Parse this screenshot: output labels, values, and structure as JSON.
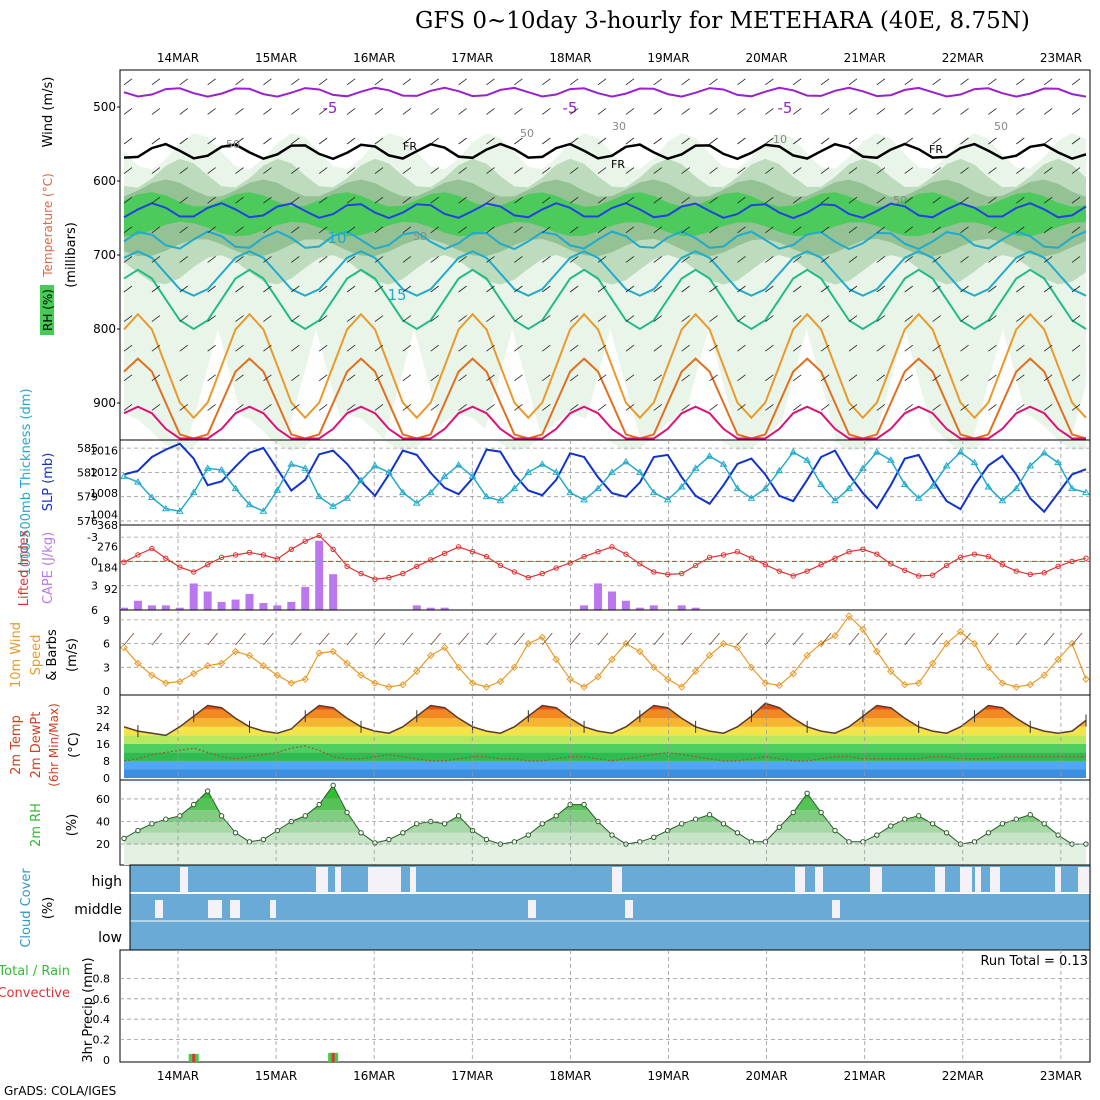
{
  "header": {
    "title": "GFS 0~10day 3-hourly for METEHARA (40E, 8.75N)",
    "credit": "GrADS: COLA/IGES"
  },
  "colors": {
    "rh_light": "#e8f4e8",
    "rh_mid": "#b8d8b8",
    "rh_dark": "#8fbf8f",
    "rh_green": "#44cc55",
    "temp_purple": "#9922cc",
    "temp_blue": "#2244dd",
    "temp_cyan": "#22aacc",
    "temp_teal": "#22bb88",
    "temp_orange": "#e89a2a",
    "temp_darkorange": "#e07020",
    "temp_magenta": "#dd1177",
    "slp": "#1133cc",
    "thickness": "#22aacc",
    "lifted_index": "#dd3333",
    "cape": "#bb77ee",
    "wind_speed": "#e89a2a",
    "cloud": "#6aaad6",
    "rain_total": "#44cc44",
    "rain_convective": "#dd3333"
  },
  "chart_data": [
    {
      "type": "line",
      "panel": "upper-air",
      "title": "",
      "y_label_parts": [
        "RH (%)",
        "Temperature (°C)",
        "Wind (m/s)"
      ],
      "y_axis_title": "(millibars)",
      "x": [
        "14MAR",
        "15MAR",
        "16MAR",
        "17MAR",
        "18MAR",
        "19MAR",
        "20MAR",
        "21MAR",
        "22MAR",
        "23MAR"
      ],
      "yticks": [
        500,
        600,
        700,
        800,
        900
      ],
      "ylim": [
        950,
        450
      ],
      "contour_labels": [
        "-5",
        "-5",
        "-5",
        "10",
        "15",
        "FR",
        "FR",
        "FR",
        "50",
        "50",
        "30",
        "10",
        "50",
        "50",
        "50"
      ],
      "freezing_level_label": "FR"
    },
    {
      "type": "line",
      "panel": "pressure",
      "y_label_left": "1000-500mb Thickness (dm)",
      "y_label_right": "SLP (mb)",
      "left_ticks": [
        "585",
        "582",
        "579",
        "576"
      ],
      "right_ticks": [
        "1016",
        "1012",
        "1008",
        "1004"
      ],
      "series": [
        {
          "name": "SLP (mb)",
          "values": [
            1011.5,
            1012.2,
            1014.8,
            1016.2,
            1017.3,
            1014.5,
            1009.5,
            1010.2,
            1013.0,
            1015.6,
            1016.5,
            1012.5,
            1008.5,
            1010.5,
            1015.3,
            1016.0,
            1013.5,
            1010.2,
            1007.5,
            1011.5,
            1016.0,
            1015.2,
            1011.8,
            1009.0,
            1007.8,
            1010.8,
            1016.2,
            1015.8,
            1011.5,
            1008.5,
            1007.6,
            1010.5,
            1015.5,
            1014.8,
            1011.0,
            1008.0,
            1007.3,
            1010.0,
            1014.8,
            1015.2,
            1011.0,
            1007.5,
            1006.0,
            1009.5,
            1013.5,
            1014.5,
            1011.5,
            1007.5,
            1006.5,
            1010.5,
            1014.8,
            1016.0,
            1011.5,
            1008.0,
            1005.2,
            1009.5,
            1014.5,
            1015.2,
            1010.5,
            1006.5,
            1005.0,
            1009.5,
            1013.2,
            1015.0,
            1011.5,
            1007.0,
            1004.5,
            1008.0,
            1011.5,
            1012.5
          ]
        },
        {
          "name": "1000-500mb Thickness (dm)",
          "values": [
            581.5,
            580.8,
            578.9,
            577.5,
            577.2,
            579.5,
            582.5,
            582.3,
            580.0,
            578.0,
            577.2,
            579.8,
            583.0,
            582.5,
            579.0,
            577.8,
            578.8,
            581.0,
            582.8,
            582.0,
            579.5,
            578.2,
            579.5,
            581.5,
            582.9,
            581.5,
            579.0,
            578.5,
            580.0,
            582.0,
            583.0,
            582.0,
            579.5,
            578.6,
            580.0,
            582.0,
            583.3,
            582.0,
            579.5,
            578.6,
            580.2,
            582.5,
            584.0,
            583.0,
            580.0,
            578.8,
            580.0,
            582.2,
            584.5,
            583.5,
            580.5,
            578.5,
            580.0,
            582.5,
            584.5,
            583.5,
            580.5,
            578.8,
            580.3,
            582.8,
            584.5,
            583.2,
            580.2,
            578.5,
            580.0,
            582.8,
            584.4,
            583.2,
            580.0,
            579.5
          ]
        }
      ]
    },
    {
      "type": "bar",
      "panel": "stability",
      "y_label_left": "Lifted Index",
      "y_label_right": "CAPE (J/kg)",
      "left_ticks": [
        "-3",
        "0",
        "3",
        "6"
      ],
      "right_ticks": [
        "368",
        "276",
        "184",
        "92"
      ],
      "series": [
        {
          "name": "CAPE (J/kg)",
          "values": [
            10,
            40,
            20,
            20,
            10,
            115,
            80,
            35,
            45,
            70,
            30,
            20,
            35,
            100,
            300,
            155,
            0,
            0,
            0,
            0,
            0,
            20,
            10,
            10,
            0,
            0,
            0,
            0,
            0,
            0,
            0,
            0,
            0,
            20,
            115,
            80,
            40,
            10,
            20,
            0,
            20,
            10,
            0,
            0,
            0,
            0,
            0,
            0,
            0,
            0,
            0,
            0,
            0,
            0,
            0,
            0,
            0,
            0,
            0,
            0,
            0,
            0,
            0,
            0,
            0,
            0,
            0,
            0,
            0,
            0
          ]
        },
        {
          "name": "Lifted Index",
          "values": [
            0.1,
            -0.8,
            -1.6,
            -0.4,
            0.7,
            1.3,
            0.4,
            -0.5,
            -0.8,
            -1.1,
            -0.8,
            -0.3,
            -1.5,
            -2.5,
            -3.2,
            -1.5,
            0.6,
            1.5,
            2.2,
            2.0,
            1.5,
            0.6,
            -0.2,
            -1.0,
            -1.8,
            -1.2,
            -0.6,
            0.5,
            1.3,
            2.0,
            1.5,
            0.8,
            0.2,
            -0.6,
            -1.2,
            -1.8,
            -0.9,
            0.3,
            1.3,
            1.6,
            1.5,
            0.5,
            -0.5,
            -0.8,
            -1.2,
            -0.4,
            0.4,
            1.2,
            1.8,
            1.2,
            0.4,
            -0.4,
            -1.2,
            -1.5,
            -0.9,
            0.3,
            1.1,
            1.8,
            1.7,
            0.5,
            -0.5,
            -0.9,
            -0.6,
            0.4,
            1.2,
            1.6,
            1.4,
            0.6,
            0.0,
            -0.4
          ]
        }
      ]
    },
    {
      "type": "line",
      "panel": "wind10m",
      "y_label_left": "10m Wind",
      "y_label_mid": "Speed",
      "y_label_right": "& Barbs",
      "y_unit": "(m/s)",
      "yticks": [
        "9",
        "6",
        "3",
        "0"
      ],
      "series": [
        {
          "name": "Speed",
          "values": [
            5.5,
            3.5,
            2.0,
            1.0,
            1.2,
            2.2,
            3.2,
            3.5,
            5.0,
            4.5,
            3.2,
            2.0,
            1.0,
            1.5,
            4.8,
            5.0,
            3.5,
            2.0,
            1.0,
            0.5,
            0.8,
            2.5,
            4.5,
            5.5,
            3.0,
            1.0,
            0.5,
            1.2,
            3.0,
            6.0,
            6.8,
            4.0,
            1.5,
            0.5,
            1.8,
            4.0,
            6.0,
            5.0,
            3.0,
            1.5,
            0.5,
            2.5,
            4.5,
            6.0,
            5.5,
            3.0,
            1.0,
            0.7,
            2.2,
            4.5,
            6.0,
            7.0,
            9.5,
            7.8,
            5.0,
            2.5,
            0.8,
            1.0,
            3.5,
            6.0,
            7.5,
            6.0,
            3.0,
            1.0,
            0.5,
            0.8,
            2.0,
            4.0,
            6.0,
            1.5
          ]
        }
      ]
    },
    {
      "type": "area",
      "panel": "temperature",
      "y_label_parts": [
        "2m Temp",
        "2m DewPt",
        "(6hr Min/Max)"
      ],
      "y_unit": "(°C)",
      "yticks": [
        "32",
        "24",
        "16",
        "8",
        "0"
      ],
      "series": [
        {
          "name": "2m Temp",
          "values": [
            24,
            22,
            21,
            20,
            24,
            29,
            34,
            33,
            28,
            24,
            22,
            21,
            23,
            29,
            34,
            33,
            28,
            24,
            22,
            21,
            24,
            29,
            34,
            33,
            28,
            24,
            22,
            21,
            24,
            29,
            34,
            33,
            28,
            24,
            22,
            21,
            24,
            29,
            34,
            33,
            28,
            24,
            22,
            21,
            24,
            29,
            35,
            33,
            28,
            24,
            22,
            21,
            24,
            29,
            34,
            33,
            28,
            24,
            22,
            21,
            24,
            29,
            34,
            33,
            28,
            24,
            22,
            21,
            22,
            27
          ]
        },
        {
          "name": "2m DewPt",
          "values": [
            8,
            9,
            11,
            12,
            13,
            14,
            12,
            10,
            9,
            10,
            11,
            12,
            14,
            15,
            13,
            10,
            9,
            9,
            10,
            11,
            10,
            9,
            8,
            8,
            9,
            10,
            10,
            9,
            9,
            8,
            8,
            9,
            10,
            10,
            9,
            8,
            9,
            10,
            11,
            12,
            11,
            10,
            9,
            8,
            8,
            9,
            10,
            9,
            8,
            8,
            9,
            10,
            10,
            9,
            9,
            9,
            9,
            9,
            10,
            10,
            9,
            9,
            9,
            10,
            10,
            10,
            10,
            10,
            10,
            10
          ]
        }
      ]
    },
    {
      "type": "area",
      "panel": "rh2m",
      "y_label": "2m RH",
      "y_unit": "(%)",
      "yticks": [
        "60",
        "40",
        "20"
      ],
      "series": [
        {
          "name": "2m RH",
          "values": [
            25,
            32,
            38,
            42,
            45,
            55,
            67,
            45,
            30,
            22,
            24,
            32,
            40,
            45,
            55,
            72,
            48,
            30,
            21,
            24,
            30,
            38,
            40,
            38,
            45,
            32,
            24,
            20,
            22,
            28,
            38,
            45,
            55,
            55,
            40,
            28,
            20,
            22,
            26,
            32,
            38,
            42,
            46,
            38,
            30,
            22,
            22,
            35,
            48,
            65,
            48,
            32,
            22,
            22,
            28,
            36,
            42,
            45,
            38,
            30,
            20,
            22,
            30,
            38,
            42,
            46,
            38,
            28,
            20,
            20
          ]
        }
      ]
    },
    {
      "type": "bar",
      "panel": "cloud",
      "y_label": "Cloud Cover",
      "y_unit": "(%)",
      "layers": [
        "high",
        "middle",
        "low"
      ]
    },
    {
      "type": "bar",
      "panel": "precip",
      "y_label_left": "Total / Rain",
      "y_label_right": "Convective",
      "y_unit": "3hr Precip (mm)",
      "yticks": [
        "0.8",
        "0.6",
        "0.4",
        "0.2",
        "0"
      ],
      "run_total": "Run Total = 0.13",
      "series": [
        {
          "name": "Total / Rain",
          "values": [
            0,
            0,
            0,
            0,
            0,
            0.06,
            0,
            0,
            0,
            0,
            0,
            0,
            0,
            0,
            0,
            0.07,
            0,
            0,
            0,
            0,
            0,
            0,
            0,
            0,
            0,
            0,
            0,
            0,
            0,
            0,
            0,
            0,
            0,
            0,
            0,
            0,
            0,
            0,
            0,
            0,
            0,
            0,
            0,
            0,
            0,
            0,
            0,
            0,
            0,
            0,
            0,
            0,
            0,
            0,
            0,
            0,
            0,
            0,
            0,
            0,
            0,
            0,
            0,
            0,
            0,
            0,
            0,
            0,
            0,
            0
          ]
        },
        {
          "name": "Convective",
          "values": [
            0,
            0,
            0,
            0,
            0,
            0.06,
            0,
            0,
            0,
            0,
            0,
            0,
            0,
            0,
            0,
            0.07,
            0,
            0,
            0,
            0,
            0,
            0,
            0,
            0,
            0,
            0,
            0,
            0,
            0,
            0,
            0,
            0,
            0,
            0,
            0,
            0,
            0,
            0,
            0,
            0,
            0,
            0,
            0,
            0,
            0,
            0,
            0,
            0,
            0,
            0,
            0,
            0,
            0,
            0,
            0,
            0,
            0,
            0,
            0,
            0,
            0,
            0,
            0,
            0,
            0,
            0,
            0,
            0,
            0,
            0
          ]
        }
      ]
    }
  ]
}
